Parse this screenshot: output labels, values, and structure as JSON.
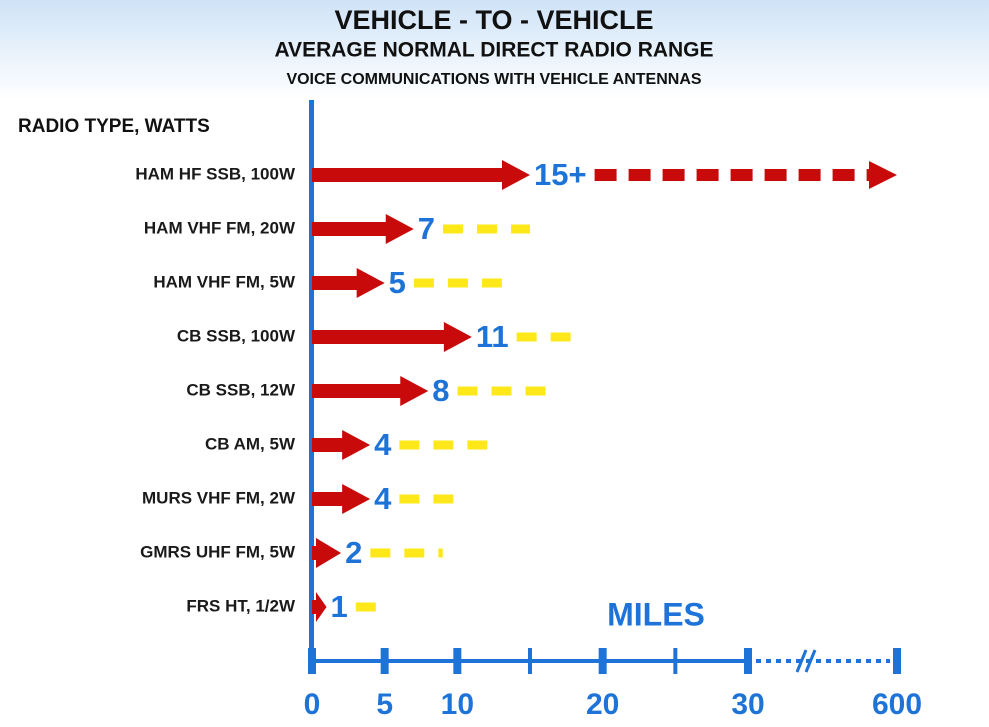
{
  "chart_data": {
    "type": "arrow-bar",
    "title": "VEHICLE - TO - VEHICLE",
    "subtitle": "AVERAGE NORMAL DIRECT RADIO RANGE",
    "subtitle2": "VOICE COMMUNICATIONS WITH VEHICLE ANTENNAS",
    "y_label": "RADIO TYPE, WATTS",
    "x_label": "MILES",
    "categories": [
      "HAM HF SSB, 100W",
      "HAM VHF FM, 20W",
      "HAM VHF FM, 5W",
      "CB SSB, 100W",
      "CB SSB, 12W",
      "CB AM, 5W",
      "MURS VHF FM, 2W",
      "GMRS UHF FM, 5W",
      "FRS HT, 1/2W"
    ],
    "values": [
      15,
      7,
      5,
      11,
      8,
      4,
      4,
      2,
      1
    ],
    "value_labels": [
      "15+",
      "7",
      "5",
      "11",
      "8",
      "4",
      "4",
      "2",
      "1"
    ],
    "extended": [
      600,
      15,
      14,
      18,
      17,
      13,
      10,
      9,
      5
    ],
    "color": "#c80a0a",
    "extended_colors": [
      "#c80a0a",
      "#ffe81a",
      "#ffe81a",
      "#ffe81a",
      "#ffe81a",
      "#ffe81a",
      "#ffe81a",
      "#ffe81a",
      "#ffe81a"
    ],
    "xlim": [
      0,
      600
    ],
    "xbreak": [
      30,
      600
    ],
    "xticks": [
      0,
      5,
      10,
      20,
      30,
      600
    ],
    "minor_xticks": [
      15,
      25
    ]
  }
}
